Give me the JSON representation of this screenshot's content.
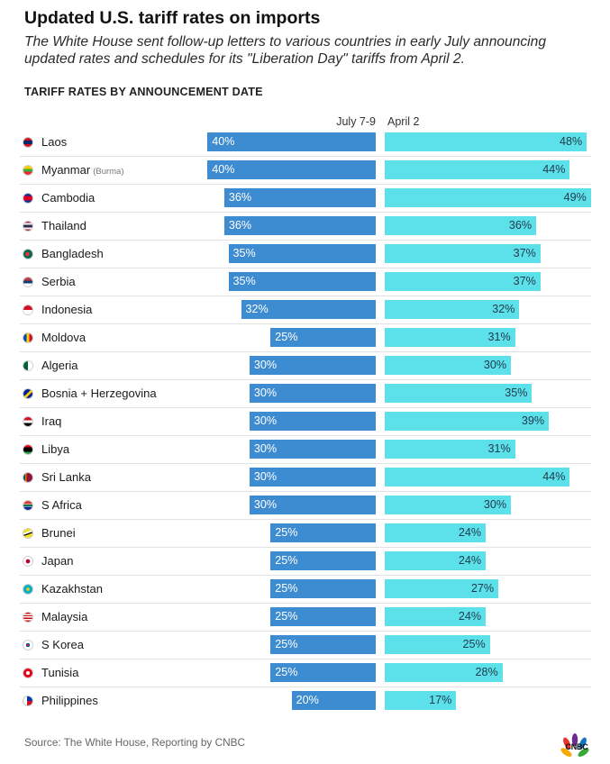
{
  "title": "Updated U.S. tariff rates on imports",
  "subtitle": "The White House sent follow-up letters to various countries in early July announcing updated rates and schedules for its \"Liberation Day\" tariffs from April 2.",
  "section_title": "TARIFF RATES BY ANNOUNCEMENT DATE",
  "source": "Source: The White House, Reporting by CNBC",
  "logo_text": "CNBC",
  "colors": {
    "july": "#3d8bd0",
    "april": "#5ce1ea",
    "separator": "#e2e2e2"
  },
  "chart_data": {
    "type": "bar",
    "orientation": "horizontal-diverging",
    "value_unit": "%",
    "grid": false,
    "legend": "column headers above bars",
    "series": [
      {
        "name": "July 7-9",
        "color": "#3d8bd0",
        "direction": "left",
        "values": [
          40,
          40,
          36,
          36,
          35,
          35,
          32,
          25,
          30,
          30,
          30,
          30,
          30,
          30,
          25,
          25,
          25,
          25,
          25,
          25,
          20
        ]
      },
      {
        "name": "April 2",
        "color": "#5ce1ea",
        "direction": "right",
        "values": [
          48,
          44,
          49,
          36,
          37,
          37,
          32,
          31,
          30,
          35,
          39,
          31,
          44,
          30,
          24,
          24,
          27,
          24,
          25,
          28,
          17
        ]
      }
    ],
    "categories": [
      {
        "name": "Laos",
        "flag": "flag-laos"
      },
      {
        "name": "Myanmar",
        "note": "(Burma)",
        "flag": "flag-myanmar"
      },
      {
        "name": "Cambodia",
        "flag": "flag-cambodia"
      },
      {
        "name": "Thailand",
        "flag": "flag-thailand"
      },
      {
        "name": "Bangladesh",
        "flag": "flag-bangladesh"
      },
      {
        "name": "Serbia",
        "flag": "flag-serbia"
      },
      {
        "name": "Indonesia",
        "flag": "flag-indonesia"
      },
      {
        "name": "Moldova",
        "flag": "flag-moldova"
      },
      {
        "name": "Algeria",
        "flag": "flag-algeria"
      },
      {
        "name": "Bosnia + Herzegovina",
        "flag": "flag-bosnia"
      },
      {
        "name": "Iraq",
        "flag": "flag-iraq"
      },
      {
        "name": "Libya",
        "flag": "flag-libya"
      },
      {
        "name": "Sri Lanka",
        "flag": "flag-sri-lanka"
      },
      {
        "name": "S Africa",
        "flag": "flag-south-africa"
      },
      {
        "name": "Brunei",
        "flag": "flag-brunei"
      },
      {
        "name": "Japan",
        "flag": "flag-japan"
      },
      {
        "name": "Kazakhstan",
        "flag": "flag-kazakhstan"
      },
      {
        "name": "Malaysia",
        "flag": "flag-malaysia"
      },
      {
        "name": "S Korea",
        "flag": "flag-south-korea"
      },
      {
        "name": "Tunisia",
        "flag": "flag-tunisia"
      },
      {
        "name": "Philippines",
        "flag": "flag-philippines"
      }
    ]
  }
}
